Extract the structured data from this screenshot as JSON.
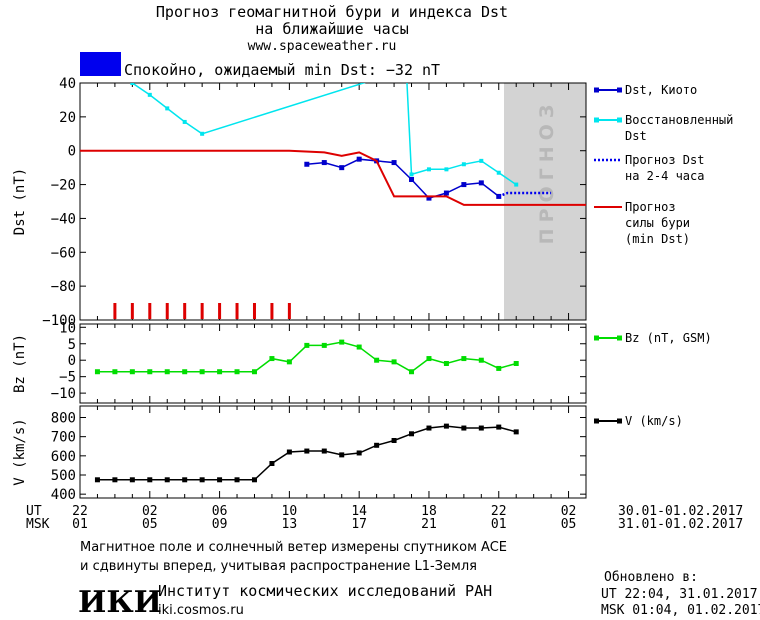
{
  "header": {
    "title_line1": "Прогноз геомагнитной бури и индекса Dst",
    "title_line2": "на ближайшие часы",
    "url": "www.spaceweather.ru"
  },
  "status": {
    "text": "Спокойно, ожидаемый min Dst: −32 nT",
    "color": "#0000ee"
  },
  "forecast_band_label": "ПРОГНОЗ",
  "time_axis": {
    "ut_label": "UT",
    "msk_label": "MSK",
    "ut_ticks": [
      "22",
      "02",
      "06",
      "10",
      "14",
      "18",
      "22",
      "02"
    ],
    "msk_ticks": [
      "01",
      "05",
      "09",
      "13",
      "17",
      "21",
      "01",
      "05"
    ],
    "ut_range": "30.01-01.02.2017",
    "msk_range": "31.01-01.02.2017"
  },
  "footer": {
    "note_line1": "Магнитное поле и солнечный ветер измерены спутником ACE",
    "note_line2": "и сдвинуты вперед, учитывая распространение L1-Земля",
    "logo_text": "ИКИ",
    "institute": "Институт космических исследований РАН",
    "site": "iki.cosmos.ru",
    "updated_label": "Обновлено в:",
    "updated_ut": "UT  22:04, 31.01.2017",
    "updated_msk": "MSK 01:04, 01.02.2017"
  },
  "colors": {
    "dst_kyoto": "#0000cc",
    "dst_restored": "#00e5ee",
    "dst_forecast": "#0000ee",
    "storm_forecast": "#dd0000",
    "bz": "#00dd00",
    "speed": "#000000",
    "forecast_band": "#d3d3d3"
  },
  "chart_data": [
    {
      "type": "line",
      "ylabel": "Dst (nT)",
      "ylim": [
        -100,
        40
      ],
      "yticks": [
        40,
        20,
        0,
        -20,
        -40,
        -60,
        -80,
        -100
      ],
      "xlim": [
        0,
        29
      ],
      "forecast_band_x": [
        24.3,
        29
      ],
      "series": [
        {
          "name": "Dst, Киото",
          "x": [
            13,
            14,
            15,
            16,
            17,
            18,
            19,
            20,
            21,
            22,
            23,
            24
          ],
          "y": [
            -8,
            -7,
            -10,
            -5,
            -6,
            -7,
            -17,
            -28,
            -25,
            -20,
            -19,
            -27
          ]
        },
        {
          "name": "Восстановленный Dst",
          "x": [
            2,
            3,
            4,
            5,
            6,
            7,
            18.7,
            19,
            20,
            21,
            22,
            23,
            24,
            25
          ],
          "y": [
            48,
            40,
            33,
            25,
            17,
            10,
            48,
            -14,
            -11,
            -11,
            -8,
            -6,
            -13,
            -20
          ]
        },
        {
          "name": "Прогноз Dst на 2-4 часа",
          "x": [
            24,
            24.5,
            25,
            26,
            27
          ],
          "y": [
            -27,
            -25,
            -25,
            -25,
            -25
          ]
        },
        {
          "name": "Прогноз силы бури (min Dst)",
          "x": [
            0,
            12,
            14,
            15,
            16,
            17,
            18,
            20,
            21,
            22,
            23,
            29
          ],
          "y": [
            0,
            0,
            -1,
            -3,
            -1,
            -6,
            -27,
            -27,
            -27,
            -32,
            -32,
            -32
          ]
        }
      ],
      "markers_x": [
        2,
        3,
        4,
        5,
        6,
        7,
        8,
        9,
        10,
        11,
        12
      ]
    },
    {
      "type": "line",
      "ylabel": "Bz (nT)",
      "ylim": [
        -13,
        11
      ],
      "yticks": [
        10,
        5,
        0,
        -5,
        -10
      ],
      "xlim": [
        0,
        29
      ],
      "series": [
        {
          "name": "Bz (nT, GSM)",
          "x": [
            1,
            2,
            3,
            4,
            5,
            6,
            7,
            8,
            9,
            10,
            11,
            12,
            13,
            14,
            15,
            16,
            17,
            18,
            19,
            20,
            21,
            22,
            23,
            24,
            25
          ],
          "y": [
            -3.5,
            -3.5,
            -3.5,
            -3.5,
            -3.5,
            -3.5,
            -3.5,
            -3.5,
            -3.5,
            -3.5,
            0.5,
            -0.5,
            4.5,
            4.5,
            5.5,
            4,
            0,
            -0.5,
            -3.5,
            0.5,
            -1,
            0.5,
            0,
            -2.5,
            -1
          ]
        }
      ]
    },
    {
      "type": "line",
      "ylabel": "V (km/s)",
      "ylim": [
        380,
        860
      ],
      "yticks": [
        800,
        700,
        600,
        500,
        400
      ],
      "xlim": [
        0,
        29
      ],
      "series": [
        {
          "name": "V (km/s)",
          "x": [
            1,
            2,
            3,
            4,
            5,
            6,
            7,
            8,
            9,
            10,
            11,
            12,
            13,
            14,
            15,
            16,
            17,
            18,
            19,
            20,
            21,
            22,
            23,
            24,
            25
          ],
          "y": [
            475,
            475,
            475,
            475,
            475,
            475,
            475,
            475,
            475,
            475,
            560,
            620,
            625,
            625,
            605,
            615,
            655,
            680,
            715,
            745,
            755,
            745,
            745,
            750,
            725
          ]
        }
      ]
    }
  ]
}
